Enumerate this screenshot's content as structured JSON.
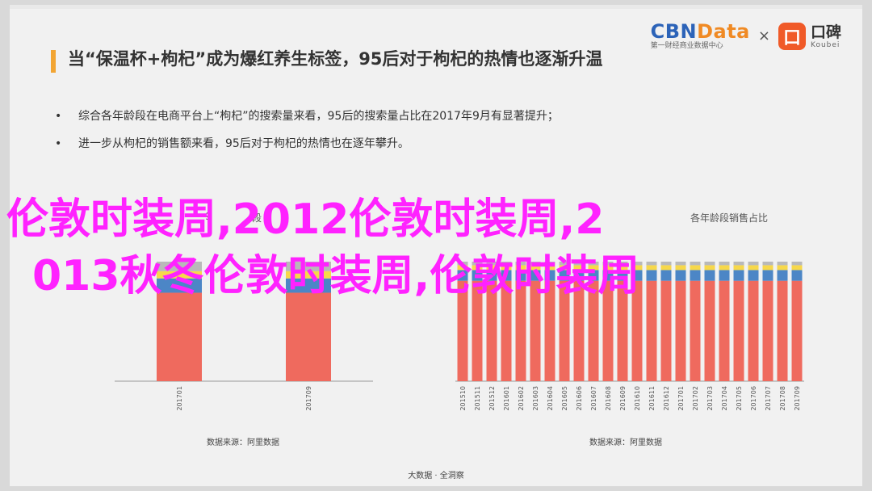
{
  "header": {
    "title": "当“保温杯+枸杞”成为爆红养生标签，95后对于枸杞的热情也逐渐升温",
    "bullets": [
      "综合各年龄段在电商平台上“枸杞”的搜索量来看，95后的搜索量占比在2017年9月有显著提升；",
      "进一步从枸杞的销售额来看，95后对于枸杞的热情也在逐年攀升。"
    ],
    "bullet_glyph": "•"
  },
  "logos": {
    "cbn_main_a": "CBN",
    "cbn_main_b": "Data",
    "cbn_sub": "第一财经商业数据中心",
    "times": "×",
    "koubei_icon": "口",
    "koubei_main": "口碑",
    "koubei_sub": "Koubei"
  },
  "left_chart": {
    "title_fragment": "9",
    "title_fragment2": "段",
    "source": "数据来源：阿里数据"
  },
  "right_chart": {
    "title_fragment": "各年龄段销售占比",
    "source": "数据来源：阿里数据"
  },
  "footer": "大数据 · 全洞察",
  "overlay": {
    "line1": "伦敦时装周,2012伦敦时装周,2",
    "line2": "013秋冬伦敦时装周,伦敦时装周"
  },
  "colors": {
    "red": "#ef6a5e",
    "blue": "#4c86c6",
    "yellow": "#f7d84a",
    "gray": "#b9b9b9",
    "overlay": "#ff22ff",
    "accent": "#f2a533"
  },
  "chart_data": [
    {
      "type": "bar",
      "stacked": true,
      "categories": [
        "201701",
        "201709"
      ],
      "series": [
        {
          "values": [
            74,
            74
          ]
        },
        {
          "values": [
            12,
            12
          ]
        },
        {
          "values": [
            6,
            6
          ]
        },
        {
          "values": [
            8,
            8
          ]
        }
      ],
      "ylim": [
        0,
        100
      ]
    },
    {
      "type": "bar",
      "stacked": true,
      "categories": [
        "201510",
        "201511",
        "201512",
        "201601",
        "201602",
        "201603",
        "201604",
        "201605",
        "201606",
        "201607",
        "201608",
        "201609",
        "201610",
        "201611",
        "201612",
        "201701",
        "201702",
        "201703",
        "201704",
        "201705",
        "201706",
        "201707",
        "201708",
        "201709"
      ],
      "series": [
        {
          "values": [
            84,
            84,
            84,
            84,
            84,
            84,
            84,
            84,
            84,
            84,
            84,
            84,
            84,
            84,
            84,
            84,
            84,
            84,
            84,
            84,
            84,
            84,
            84,
            84
          ]
        },
        {
          "values": [
            9,
            9,
            9,
            9,
            9,
            9,
            9,
            9,
            9,
            9,
            9,
            9,
            9,
            9,
            9,
            9,
            9,
            9,
            9,
            9,
            9,
            9,
            9,
            9
          ]
        },
        {
          "values": [
            4,
            4,
            4,
            4,
            4,
            4,
            4,
            4,
            4,
            4,
            4,
            4,
            4,
            4,
            4,
            4,
            4,
            4,
            4,
            4,
            4,
            4,
            4,
            4
          ]
        },
        {
          "values": [
            3,
            3,
            3,
            3,
            3,
            3,
            3,
            3,
            3,
            3,
            3,
            3,
            3,
            3,
            3,
            3,
            3,
            3,
            3,
            3,
            3,
            3,
            3,
            3
          ]
        }
      ],
      "ylim": [
        0,
        100
      ]
    }
  ]
}
